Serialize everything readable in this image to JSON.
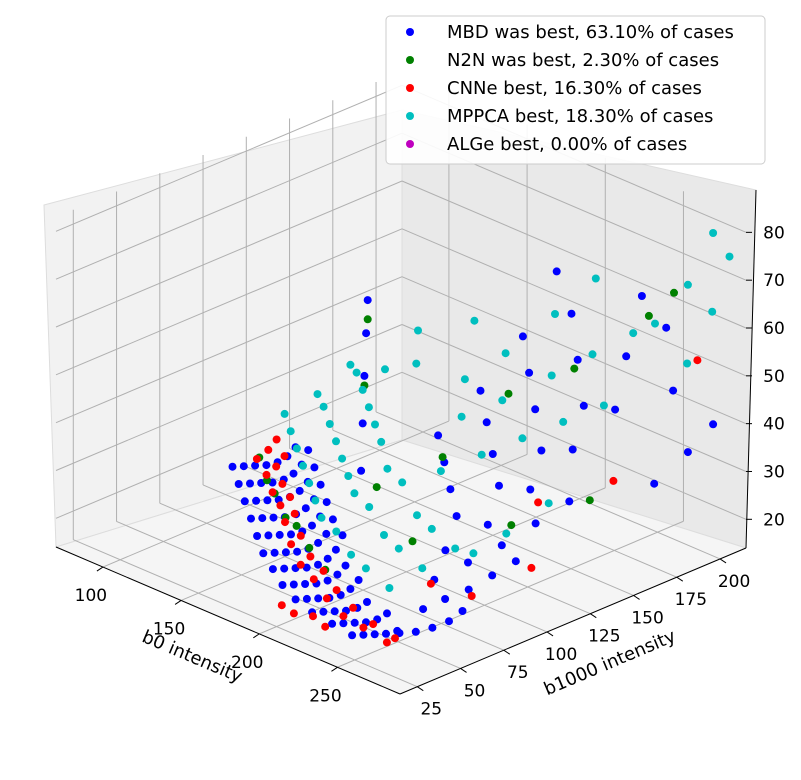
{
  "chart_data": {
    "type": "scatter",
    "projection": "3d",
    "title": "",
    "xlabel": "b0 intensity",
    "ylabel": "b1000 intensity",
    "zlabel": "",
    "xlim": [
      70,
      290
    ],
    "ylim": [
      15,
      215
    ],
    "zlim": [
      14,
      83
    ],
    "xticks": [
      "100",
      "150",
      "200",
      "250"
    ],
    "yticks": [
      "25",
      "50",
      "75",
      "100",
      "125",
      "150",
      "175",
      "200"
    ],
    "zticks": [
      "20",
      "30",
      "40",
      "50",
      "60",
      "70",
      "80"
    ],
    "grid": true,
    "legend_position": "top-right",
    "series": [
      {
        "name": "MBD was best, 63.10% of cases",
        "color": "#0000ff",
        "points": [
          [
            80,
            108,
            18
          ],
          [
            85,
            110,
            18.5
          ],
          [
            90,
            112,
            19
          ],
          [
            95,
            114,
            19.5
          ],
          [
            100,
            116,
            20.5
          ],
          [
            104,
            118,
            22
          ],
          [
            107,
            120,
            24
          ],
          [
            95,
            98,
            18
          ],
          [
            100,
            100,
            18.5
          ],
          [
            105,
            102,
            19
          ],
          [
            110,
            104,
            19.5
          ],
          [
            115,
            106,
            20.5
          ],
          [
            119,
            108,
            22
          ],
          [
            122,
            110,
            24
          ],
          [
            124,
            112,
            27
          ],
          [
            110,
            88,
            18
          ],
          [
            115,
            90,
            18.5
          ],
          [
            120,
            92,
            19
          ],
          [
            125,
            94,
            19.5
          ],
          [
            130,
            96,
            20.5
          ],
          [
            134,
            98,
            22
          ],
          [
            137,
            100,
            24
          ],
          [
            139,
            102,
            27
          ],
          [
            125,
            78,
            18
          ],
          [
            130,
            80,
            18.5
          ],
          [
            135,
            82,
            19
          ],
          [
            140,
            84,
            19.5
          ],
          [
            145,
            86,
            20.5
          ],
          [
            149,
            88,
            22
          ],
          [
            152,
            90,
            24
          ],
          [
            154,
            92,
            27
          ],
          [
            140,
            68,
            18
          ],
          [
            145,
            70,
            18.5
          ],
          [
            150,
            72,
            19
          ],
          [
            155,
            74,
            19.5
          ],
          [
            160,
            76,
            20.5
          ],
          [
            164,
            78,
            22
          ],
          [
            167,
            80,
            24
          ],
          [
            169,
            82,
            27
          ],
          [
            155,
            58,
            18
          ],
          [
            160,
            60,
            18.5
          ],
          [
            165,
            62,
            19
          ],
          [
            170,
            64,
            19.5
          ],
          [
            175,
            66,
            20.5
          ],
          [
            179,
            68,
            22
          ],
          [
            182,
            70,
            24
          ],
          [
            184,
            72,
            27
          ],
          [
            170,
            50,
            18
          ],
          [
            175,
            52,
            18.5
          ],
          [
            180,
            54,
            19
          ],
          [
            185,
            56,
            19.5
          ],
          [
            190,
            58,
            20.5
          ],
          [
            194,
            60,
            22
          ],
          [
            197,
            62,
            24
          ],
          [
            199,
            64,
            27
          ],
          [
            185,
            42,
            18
          ],
          [
            190,
            44,
            18.5
          ],
          [
            195,
            46,
            19
          ],
          [
            200,
            48,
            19.5
          ],
          [
            205,
            50,
            20.5
          ],
          [
            209,
            52,
            22
          ],
          [
            212,
            54,
            24
          ],
          [
            200,
            36,
            18
          ],
          [
            205,
            38,
            18.5
          ],
          [
            210,
            40,
            19
          ],
          [
            215,
            42,
            19.5
          ],
          [
            220,
            44,
            20.5
          ],
          [
            224,
            46,
            22
          ],
          [
            227,
            48,
            24
          ],
          [
            215,
            32,
            18
          ],
          [
            220,
            34,
            18.5
          ],
          [
            225,
            36,
            19
          ],
          [
            230,
            38,
            19.5
          ],
          [
            235,
            40,
            20.5
          ],
          [
            239,
            42,
            22
          ],
          [
            230,
            30,
            18
          ],
          [
            235,
            32,
            18.5
          ],
          [
            240,
            34,
            19
          ],
          [
            245,
            36,
            19.5
          ],
          [
            250,
            38,
            20.5
          ],
          [
            254,
            40,
            22
          ],
          [
            245,
            28,
            18
          ],
          [
            250,
            30,
            18.5
          ],
          [
            255,
            32,
            19
          ],
          [
            260,
            34,
            19.5
          ],
          [
            265,
            36,
            20.5
          ],
          [
            262,
            40,
            19
          ],
          [
            268,
            44,
            19.5
          ],
          [
            272,
            50,
            20
          ],
          [
            276,
            56,
            21
          ],
          [
            278,
            62,
            22.5
          ],
          [
            255,
            60,
            20
          ],
          [
            258,
            70,
            21
          ],
          [
            262,
            80,
            22
          ],
          [
            266,
            90,
            24
          ],
          [
            270,
            100,
            26
          ],
          [
            240,
            80,
            21
          ],
          [
            245,
            95,
            23
          ],
          [
            250,
            110,
            25
          ],
          [
            255,
            125,
            28
          ],
          [
            260,
            140,
            31
          ],
          [
            225,
            100,
            22
          ],
          [
            230,
            120,
            25
          ],
          [
            235,
            140,
            30
          ],
          [
            240,
            160,
            36
          ],
          [
            245,
            180,
            42
          ],
          [
            210,
            120,
            24
          ],
          [
            215,
            140,
            28
          ],
          [
            220,
            160,
            33
          ],
          [
            225,
            180,
            40
          ],
          [
            230,
            200,
            48
          ],
          [
            195,
            130,
            26
          ],
          [
            200,
            150,
            31
          ],
          [
            205,
            170,
            38
          ],
          [
            210,
            190,
            46
          ],
          [
            180,
            140,
            28
          ],
          [
            185,
            160,
            34
          ],
          [
            190,
            180,
            42
          ],
          [
            195,
            200,
            52
          ],
          [
            165,
            150,
            30
          ],
          [
            170,
            170,
            37
          ],
          [
            175,
            190,
            46
          ],
          [
            180,
            205,
            58
          ],
          [
            270,
            180,
            30
          ],
          [
            275,
            195,
            35
          ],
          [
            280,
            205,
            40
          ],
          [
            260,
            200,
            45
          ],
          [
            250,
            205,
            56
          ],
          [
            240,
            200,
            62
          ],
          [
            160,
            110,
            28
          ],
          [
            150,
            120,
            35
          ],
          [
            140,
            130,
            42
          ],
          [
            130,
            140,
            48
          ],
          [
            120,
            150,
            52
          ]
        ]
      },
      {
        "name": "N2N was best, 2.30% of cases",
        "color": "#008000",
        "points": [
          [
            96,
            109,
            22
          ],
          [
            112,
            99,
            21
          ],
          [
            128,
            89,
            22
          ],
          [
            146,
            79,
            21
          ],
          [
            163,
            70,
            23
          ],
          [
            180,
            62,
            22
          ],
          [
            198,
            55,
            21
          ],
          [
            210,
            150,
            45
          ],
          [
            230,
            170,
            50
          ],
          [
            250,
            195,
            60
          ],
          [
            120,
            150,
            48
          ],
          [
            140,
            130,
            40
          ],
          [
            190,
            130,
            32
          ],
          [
            245,
            120,
            27
          ],
          [
            262,
            150,
            30
          ],
          [
            170,
            110,
            26
          ],
          [
            215,
            90,
            24
          ],
          [
            255,
            205,
            64
          ]
        ]
      },
      {
        "name": "CNNe best, 16.30% of cases",
        "color": "#ff0000",
        "points": [
          [
            100,
            104,
            23
          ],
          [
            104,
            107,
            25
          ],
          [
            106,
            110,
            27
          ],
          [
            115,
            96,
            23
          ],
          [
            119,
            98,
            25
          ],
          [
            121,
            101,
            27
          ],
          [
            130,
            86,
            23
          ],
          [
            134,
            88,
            25
          ],
          [
            146,
            76,
            24
          ],
          [
            150,
            78,
            26
          ],
          [
            160,
            66,
            24
          ],
          [
            164,
            68,
            26
          ],
          [
            175,
            56,
            23
          ],
          [
            179,
            58,
            25
          ],
          [
            190,
            48,
            22
          ],
          [
            194,
            50,
            24
          ],
          [
            205,
            42,
            22
          ],
          [
            209,
            44,
            24
          ],
          [
            220,
            36,
            21
          ],
          [
            224,
            38,
            23
          ],
          [
            235,
            32,
            20
          ],
          [
            239,
            34,
            22
          ],
          [
            250,
            30,
            20
          ],
          [
            254,
            32,
            21
          ],
          [
            265,
            30,
            19
          ],
          [
            268,
            32,
            20
          ],
          [
            200,
            28,
            18
          ],
          [
            210,
            26,
            18
          ],
          [
            220,
            28,
            18.5
          ],
          [
            230,
            26,
            18
          ],
          [
            260,
            60,
            26
          ],
          [
            275,
            70,
            24
          ],
          [
            280,
            100,
            26
          ],
          [
            255,
            170,
            30
          ],
          [
            270,
            205,
            52
          ],
          [
            240,
            140,
            28
          ]
        ]
      },
      {
        "name": "MPPCA best, 18.30% of cases",
        "color": "#00bfbf",
        "points": [
          [
            100,
            120,
            30
          ],
          [
            110,
            130,
            34
          ],
          [
            120,
            140,
            40
          ],
          [
            115,
            110,
            30
          ],
          [
            125,
            120,
            35
          ],
          [
            135,
            130,
            42
          ],
          [
            130,
            100,
            30
          ],
          [
            140,
            110,
            35
          ],
          [
            150,
            120,
            42
          ],
          [
            145,
            90,
            30
          ],
          [
            155,
            100,
            35
          ],
          [
            165,
            110,
            42
          ],
          [
            160,
            80,
            30
          ],
          [
            170,
            90,
            35
          ],
          [
            180,
            100,
            42
          ],
          [
            175,
            70,
            30
          ],
          [
            185,
            80,
            35
          ],
          [
            195,
            90,
            42
          ],
          [
            190,
            60,
            30
          ],
          [
            200,
            70,
            35
          ],
          [
            210,
            80,
            40
          ],
          [
            205,
            55,
            30
          ],
          [
            215,
            65,
            35
          ],
          [
            225,
            75,
            40
          ],
          [
            220,
            50,
            28
          ],
          [
            230,
            60,
            32
          ],
          [
            240,
            70,
            36
          ],
          [
            235,
            45,
            28
          ],
          [
            245,
            55,
            32
          ],
          [
            255,
            65,
            36
          ],
          [
            250,
            45,
            26
          ],
          [
            260,
            55,
            30
          ],
          [
            270,
            65,
            34
          ],
          [
            265,
            80,
            30
          ],
          [
            275,
            90,
            34
          ],
          [
            280,
            110,
            38
          ],
          [
            200,
            120,
            32
          ],
          [
            215,
            130,
            36
          ],
          [
            230,
            140,
            40
          ],
          [
            245,
            150,
            44
          ],
          [
            260,
            160,
            48
          ],
          [
            180,
            150,
            36
          ],
          [
            195,
            160,
            40
          ],
          [
            210,
            175,
            45
          ],
          [
            225,
            185,
            50
          ],
          [
            240,
            195,
            55
          ],
          [
            160,
            170,
            38
          ],
          [
            175,
            180,
            44
          ],
          [
            190,
            195,
            52
          ],
          [
            205,
            205,
            60
          ],
          [
            280,
            190,
            55
          ],
          [
            285,
            200,
            65
          ],
          [
            285,
            210,
            75
          ],
          [
            280,
            205,
            80
          ],
          [
            275,
            195,
            70
          ],
          [
            265,
            185,
            62
          ],
          [
            140,
            160,
            40
          ],
          [
            155,
            180,
            48
          ],
          [
            130,
            170,
            44
          ],
          [
            120,
            160,
            36
          ]
        ]
      },
      {
        "name": "ALGe best, 0.00% of cases",
        "color": "#bf00bf",
        "points": []
      }
    ]
  }
}
